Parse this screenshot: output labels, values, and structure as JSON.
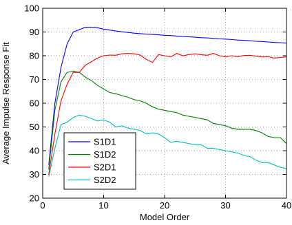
{
  "chart_data": {
    "type": "line",
    "xlabel": "Model Order",
    "ylabel": "Average Impulse Response Fit",
    "xlim": [
      0,
      40
    ],
    "ylim": [
      20,
      100
    ],
    "xticks": [
      0,
      10,
      20,
      30,
      40
    ],
    "yticks": [
      20,
      30,
      40,
      50,
      60,
      70,
      80,
      90,
      100
    ],
    "grid": true,
    "legend_position": "bottom-left",
    "x": [
      1,
      2,
      3,
      4,
      5,
      6,
      7,
      8,
      9,
      10,
      11,
      12,
      13,
      14,
      15,
      16,
      17,
      18,
      19,
      20,
      21,
      22,
      23,
      24,
      25,
      26,
      27,
      28,
      29,
      30,
      31,
      32,
      33,
      34,
      35,
      36,
      37,
      38,
      39,
      40
    ],
    "series": [
      {
        "name": "S1D1",
        "color": "#0000ff",
        "values": [
          34,
          60,
          75,
          85,
          90,
          91,
          92,
          92,
          91.8,
          91.2,
          90.8,
          90.4,
          90.1,
          89.8,
          89.5,
          89.3,
          89.1,
          89,
          88.8,
          88.6,
          88.5,
          88.3,
          88.1,
          88,
          87.8,
          87.6,
          87.5,
          87.3,
          87.1,
          87,
          86.8,
          86.6,
          86.5,
          86.3,
          86.1,
          86,
          85.8,
          85.6,
          85.5,
          85.3
        ]
      },
      {
        "name": "S1D2",
        "color": "#008000",
        "values": [
          32,
          57,
          69,
          73,
          73.5,
          73,
          71,
          69.5,
          67.5,
          66,
          64.5,
          64,
          63.2,
          62.5,
          61.5,
          61,
          60,
          58.5,
          57.5,
          57,
          56.5,
          56,
          55,
          54.5,
          54,
          53.5,
          53,
          51.5,
          51,
          50.5,
          49.5,
          49,
          49,
          49,
          48.5,
          47.5,
          46,
          45.5,
          45.5,
          43
        ]
      },
      {
        "name": "S2D1",
        "color": "#ff0000",
        "values": [
          30,
          47,
          61,
          68,
          73,
          73,
          76,
          77.5,
          79,
          80,
          80.3,
          80.2,
          80.8,
          81,
          80.8,
          80.3,
          78.5,
          77.2,
          80.5,
          80,
          79.5,
          81,
          80,
          80.5,
          80.8,
          80.4,
          80.2,
          81,
          80,
          79.5,
          80,
          79.6,
          80.1,
          80.2,
          79.8,
          79.5,
          79.6,
          79,
          79.3,
          79.5
        ]
      },
      {
        "name": "S2D2",
        "color": "#00bfbf",
        "values": [
          29,
          41,
          51,
          52,
          54,
          55,
          54.5,
          53.5,
          52.5,
          53,
          52,
          50,
          50.5,
          49.5,
          49,
          48.5,
          47,
          47.5,
          47,
          45.5,
          43.5,
          44,
          43.5,
          43,
          42.5,
          42.5,
          41,
          41,
          40.5,
          40,
          39.5,
          39,
          38,
          37.5,
          36,
          35,
          35,
          34,
          33,
          32.5
        ]
      }
    ]
  }
}
